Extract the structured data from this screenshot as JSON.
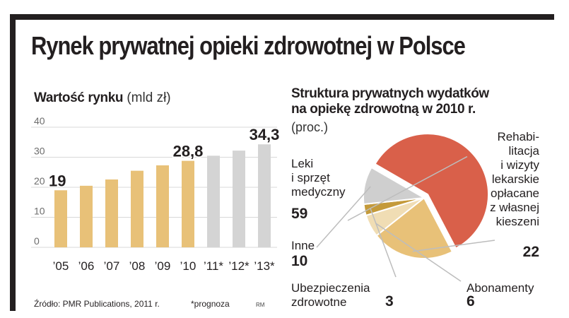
{
  "title": "Rynek prywatnej opieki zdrowotnej w Polsce",
  "colors": {
    "frame": "#231f20",
    "bar_actual": "#e8c178",
    "bar_forecast": "#d4d4d4",
    "grid": "#d9d9d9",
    "pie_leki": "#d9604a",
    "pie_rehab": "#e8c178",
    "pie_abon": "#f0ddb4",
    "pie_ubezp": "#c49a3a",
    "pie_inne": "#cfcfcf",
    "leader": "#bdbdbd"
  },
  "chart_data": [
    {
      "type": "bar",
      "title_bold": "Wartość rynku",
      "title_unit": "(mld zł)",
      "ylim": [
        0,
        40
      ],
      "yticks": [
        "0",
        "10",
        "20",
        "30",
        "40"
      ],
      "categories": [
        "’05",
        "’06",
        "’07",
        "’08",
        "’09",
        "’10",
        "’11*",
        "’12*",
        "’13*"
      ],
      "values": [
        19,
        20.5,
        22.6,
        25.5,
        27.3,
        28.8,
        30.5,
        32.2,
        34.3
      ],
      "forecast": [
        false,
        false,
        false,
        false,
        false,
        false,
        true,
        true,
        true
      ],
      "data_labels": [
        "19",
        "",
        "",
        "",
        "",
        "28,8",
        "",
        "",
        "34,3"
      ]
    },
    {
      "type": "pie",
      "title": "Struktura prywatnych wydatków na opiekę zdrowotną w 2010 r.",
      "title_line1": "Struktura prywatnych wydatków",
      "title_line2": "na opiekę zdrowotną w 2010 r.",
      "unit": "(proc.)",
      "slices": [
        {
          "name": "Leki i sprzęt medyczny",
          "value": 59
        },
        {
          "name": "Rehabilitacja i wizyty lekarskie opłacane z własnej kieszeni",
          "value": 22
        },
        {
          "name": "Abonamenty",
          "value": 6
        },
        {
          "name": "Ubezpieczenia zdrowotne",
          "value": 3
        },
        {
          "name": "Inne",
          "value": 10
        }
      ]
    }
  ],
  "pie_labels": {
    "leki": [
      "Leki",
      "i sprzęt",
      "medyczny"
    ],
    "leki_value": "59",
    "rehab": [
      "Rehabi-",
      "litacja",
      "i wizyty",
      "lekarskie",
      "opłacane",
      "z własnej",
      "kieszeni"
    ],
    "rehab_value": "22",
    "inne": "Inne",
    "inne_value": "10",
    "ubezp": [
      "Ubezpieczenia",
      "zdrowotne"
    ],
    "ubezp_value": "3",
    "abon": "Abonamenty",
    "abon_value": "6"
  },
  "footer": {
    "source": "Źródło: PMR Publications, 2011 r.",
    "note": "*prognoza",
    "credit": "RM"
  }
}
